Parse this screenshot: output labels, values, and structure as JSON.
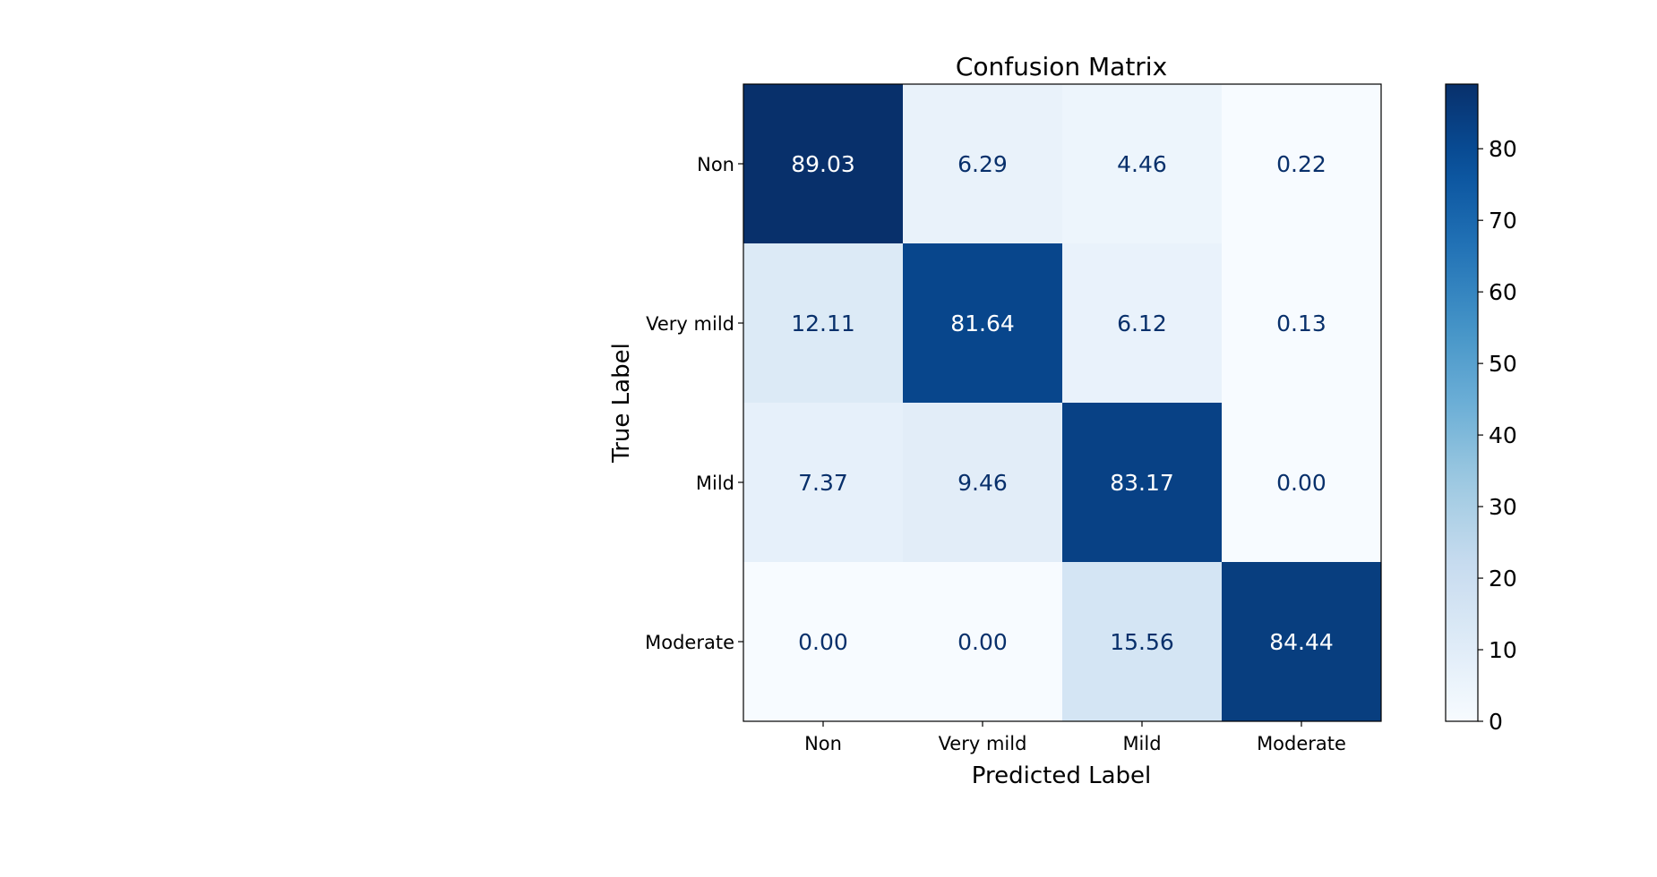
{
  "chart_data": {
    "type": "heatmap",
    "title": "Confusion Matrix",
    "xlabel": "Predicted Label",
    "ylabel": "True Label",
    "x_categories": [
      "Non",
      "Very mild",
      "Mild",
      "Moderate"
    ],
    "y_categories": [
      "Non",
      "Very mild",
      "Mild",
      "Moderate"
    ],
    "values": [
      [
        89.03,
        6.29,
        4.46,
        0.22
      ],
      [
        12.11,
        81.64,
        6.12,
        0.13
      ],
      [
        7.37,
        9.46,
        83.17,
        0.0
      ],
      [
        0.0,
        0.0,
        15.56,
        84.44
      ]
    ],
    "colormap": "Blues",
    "colorbar": {
      "range": [
        0,
        89.03
      ],
      "ticks": [
        0,
        10,
        20,
        30,
        40,
        50,
        60,
        70,
        80
      ]
    },
    "cell_text_colors": {
      "on_light": "#08306b",
      "on_dark": "#ffffff"
    }
  }
}
